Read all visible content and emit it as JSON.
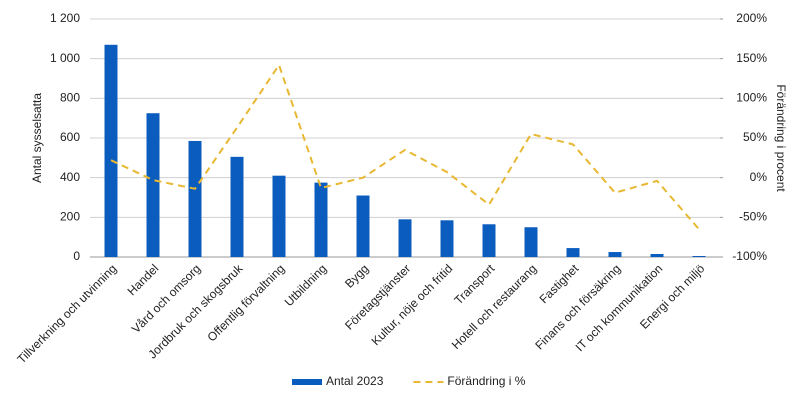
{
  "chart_data": {
    "type": "bar",
    "y_label": "Antal sysselsatta",
    "y2_label": "Förändring i procent",
    "categories": [
      "Tillverkning och utvinning",
      "Handel",
      "Vård och omsorg",
      "Jordbruk och skogsbruk",
      "Offentlig förvaltning",
      "Utbildning",
      "Bygg",
      "Företagstjänster",
      "Kultur, nöje och fritid",
      "Transport",
      "Hotell och restaurang",
      "Fastighet",
      "Finans och försäkring",
      "IT och kommunikation",
      "Energi och miljö"
    ],
    "series": [
      {
        "name": "Antal 2023",
        "type": "bar",
        "color": "#0b5cbf",
        "values": [
          1070,
          725,
          585,
          505,
          410,
          375,
          310,
          190,
          185,
          165,
          150,
          45,
          25,
          15,
          5
        ]
      },
      {
        "name": "Förändring i %",
        "type": "line",
        "axis": "y2",
        "color": "#e8b832",
        "dashed": true,
        "values": [
          22,
          -3,
          -14,
          63,
          142,
          -13,
          0,
          35,
          7,
          -34,
          55,
          42,
          -19,
          -4,
          -65
        ]
      }
    ],
    "ylim": [
      0,
      1200
    ],
    "yticks": [
      0,
      200,
      400,
      600,
      800,
      {
        "value": 1000,
        "label": "1 000"
      },
      {
        "value": 1200,
        "label": "1 200"
      }
    ],
    "y2lim": [
      -100,
      200
    ],
    "y2ticks": [
      {
        "value": -100,
        "label": "-100%"
      },
      {
        "value": -50,
        "label": "-50%"
      },
      {
        "value": 0,
        "label": "0%"
      },
      {
        "value": 50,
        "label": "50%"
      },
      {
        "value": 100,
        "label": "100%"
      },
      {
        "value": 150,
        "label": "150%"
      },
      {
        "value": 200,
        "label": "200%"
      }
    ],
    "grid": true,
    "legend": "bottom"
  }
}
